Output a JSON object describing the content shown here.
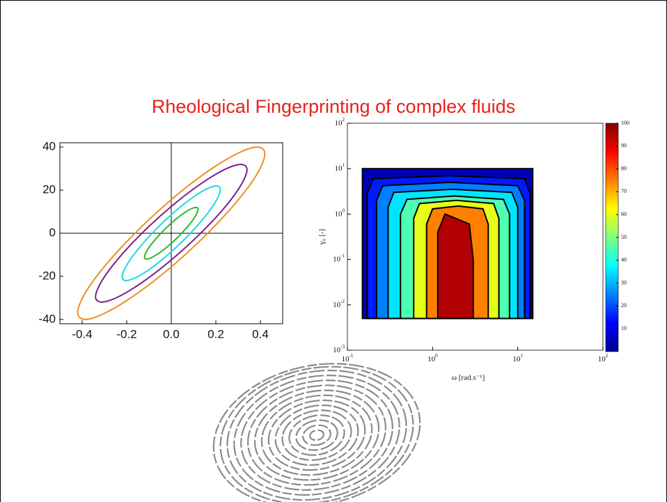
{
  "title": "Rheological Fingerprinting of complex fluids",
  "chart_data": [
    {
      "type": "lissajous",
      "xlim": [
        -0.5,
        0.5
      ],
      "ylim": [
        -42,
        42
      ],
      "xticks": [
        -0.4,
        -0.2,
        {
          "value": 0,
          "label": "0.0"
        },
        0.2,
        0.4
      ],
      "yticks": [
        -40,
        -20,
        0,
        20,
        40
      ],
      "series": [
        {
          "color": "#f08c1e",
          "x": [
            0,
            0.21,
            0.364,
            0.42,
            0.364,
            0.21,
            0,
            -0.21,
            -0.364,
            -0.42,
            -0.364,
            -0.21
          ],
          "y": [
            15.6,
            31.9,
            39.7,
            36.8,
            24.1,
            5.0,
            -15.6,
            -31.9,
            -39.7,
            -36.8,
            -24.1,
            -5.0
          ]
        },
        {
          "color": "#7b1d8e",
          "x": [
            0,
            0.17,
            0.294,
            0.34,
            0.294,
            0.17,
            0,
            -0.17,
            -0.294,
            -0.34,
            -0.294,
            -0.17
          ],
          "y": [
            12.4,
            25.5,
            31.7,
            29.5,
            19.3,
            4.0,
            -12.4,
            -25.5,
            -31.7,
            -29.5,
            -19.3,
            -4.0
          ]
        },
        {
          "color": "#1fd8e0",
          "x": [
            0,
            0.11,
            0.191,
            0.22,
            0.191,
            0.11,
            0,
            -0.11,
            -0.191,
            -0.22,
            -0.191,
            -0.11
          ],
          "y": [
            8.6,
            17.6,
            21.8,
            20.3,
            13.3,
            2.7,
            -8.6,
            -17.6,
            -21.8,
            -20.3,
            -13.3,
            -2.7
          ]
        },
        {
          "color": "#2db52d",
          "x": [
            0,
            0.06,
            0.104,
            0.12,
            0.104,
            0.06,
            0,
            -0.06,
            -0.104,
            -0.12,
            -0.104,
            -0.06
          ],
          "y": [
            4.7,
            9.6,
            11.9,
            11.1,
            7.2,
            1.5,
            -4.7,
            -9.6,
            -11.9,
            -11.1,
            -7.2,
            -1.5
          ]
        }
      ]
    },
    {
      "type": "contour",
      "xscale": "log",
      "yscale": "log",
      "x_label": "ω [rad.s⁻¹]",
      "y_label": "γ₀ [-]",
      "xlim": [
        0.1,
        100
      ],
      "ylim": [
        0.001,
        100
      ],
      "xticks": [
        {
          "value": 0.1,
          "label": "10",
          "exponent": "-1"
        },
        {
          "value": 1,
          "label": "10",
          "exponent": "0"
        },
        {
          "value": 10,
          "label": "10",
          "exponent": "1"
        },
        {
          "value": 100,
          "label": "10",
          "exponent": "2"
        }
      ],
      "yticks": [
        {
          "value": 0.001,
          "label": "10",
          "exponent": "-3"
        },
        {
          "value": 0.01,
          "label": "10",
          "exponent": "-2"
        },
        {
          "value": 0.1,
          "label": "10",
          "exponent": "-1"
        },
        {
          "value": 1,
          "label": "10",
          "exponent": "0"
        },
        {
          "value": 10,
          "label": "10",
          "exponent": "1"
        },
        {
          "value": 100,
          "label": "10",
          "exponent": "2"
        }
      ],
      "clim": [
        0,
        100
      ],
      "cticks": [
        10,
        20,
        30,
        40,
        50,
        60,
        70,
        80,
        90,
        100
      ],
      "levels": [
        {
          "value": 5,
          "x": [
            0.15,
            0.15,
            15,
            15
          ],
          "y": [
            0.005,
            10,
            10,
            0.005
          ]
        },
        {
          "value": 15,
          "x": [
            0.17,
            0.17,
            0.2,
            1.5,
            12,
            14,
            14
          ],
          "y": [
            0.005,
            2.8,
            6,
            7,
            6,
            2.8,
            0.005
          ]
        },
        {
          "value": 25,
          "x": [
            0.22,
            0.22,
            0.26,
            1.6,
            10,
            12,
            12
          ],
          "y": [
            0.005,
            2,
            4.2,
            5,
            4.2,
            2,
            0.005
          ]
        },
        {
          "value": 35,
          "x": [
            0.3,
            0.3,
            0.35,
            1.7,
            8.5,
            10,
            10
          ],
          "y": [
            0.005,
            1.4,
            3,
            3.5,
            3,
            1.4,
            0.005
          ]
        },
        {
          "value": 45,
          "x": [
            0.42,
            0.42,
            0.5,
            1.8,
            6.8,
            8,
            8
          ],
          "y": [
            0.005,
            1,
            2.1,
            2.5,
            2.1,
            1,
            0.005
          ]
        },
        {
          "value": 60,
          "x": [
            0.6,
            0.6,
            0.7,
            1.9,
            5.2,
            6,
            6
          ],
          "y": [
            0.005,
            0.8,
            1.7,
            2,
            1.7,
            0.8,
            0.005
          ]
        },
        {
          "value": 75,
          "x": [
            0.85,
            0.85,
            1,
            2,
            3.9,
            4.5,
            4.5
          ],
          "y": [
            0.005,
            0.6,
            1.3,
            1.5,
            1.3,
            0.6,
            0.005
          ]
        },
        {
          "value": 95,
          "x": [
            1.15,
            1.15,
            1.4,
            2.7,
            3,
            3
          ],
          "y": [
            0.005,
            0.4,
            1,
            0.6,
            0.1,
            0.005
          ]
        }
      ]
    }
  ]
}
